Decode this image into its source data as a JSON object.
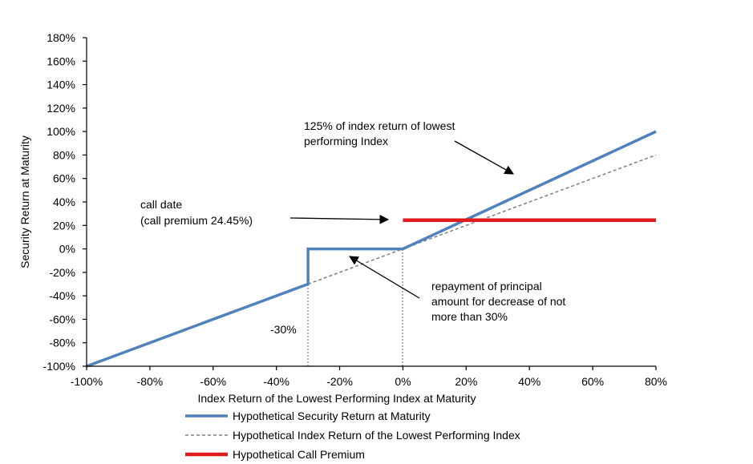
{
  "chart_data": {
    "type": "line",
    "xlabel": "Index Return of the Lowest Performing Index at Maturity",
    "ylabel": "Security Return at Maturity",
    "xlim": [
      -100,
      80
    ],
    "ylim": [
      -100,
      180
    ],
    "x_ticks": [
      "-100%",
      "-80%",
      "-60%",
      "-40%",
      "-20%",
      "0%",
      "20%",
      "40%",
      "60%",
      "80%"
    ],
    "y_ticks": [
      "-100%",
      "-80%",
      "-60%",
      "-40%",
      "-20%",
      "0%",
      "20%",
      "40%",
      "60%",
      "80%",
      "100%",
      "120%",
      "140%",
      "160%",
      "180%"
    ],
    "grid": false,
    "legend_position": "bottom",
    "series": [
      {
        "name": "Hypothetical Security Return at Maturity",
        "color": "#4f81bd",
        "style": "solid",
        "points": [
          [
            -100,
            -100
          ],
          [
            -30,
            -30
          ],
          [
            -30,
            0
          ],
          [
            0,
            0
          ],
          [
            80,
            100
          ]
        ]
      },
      {
        "name": "Hypothetical Index Return of the Lowest Performing Index",
        "color": "#7f7f7f",
        "style": "dashed",
        "points": [
          [
            -30,
            -30
          ],
          [
            80,
            80
          ]
        ]
      },
      {
        "name": "Hypothetical Call Premium",
        "color": "#e31a1c",
        "style": "solid",
        "points": [
          [
            0,
            24.45
          ],
          [
            80,
            24.45
          ]
        ]
      }
    ],
    "annotations": [
      {
        "lines": [
          "125% of index return of lowest",
          "performing Index"
        ]
      },
      {
        "lines": [
          "call date",
          "(call premium 24.45%)"
        ]
      },
      {
        "lines": [
          "repayment of principal",
          "amount for decrease of not",
          "more than 30%"
        ]
      },
      {
        "lines": [
          "-30%"
        ]
      }
    ]
  }
}
